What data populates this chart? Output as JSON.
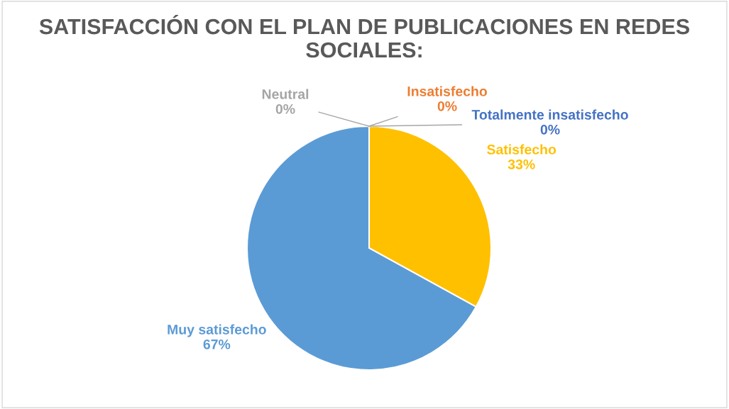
{
  "chart_data": {
    "type": "pie",
    "title": "SATISFACCIÓN CON EL PLAN DE PUBLICACIONES EN REDES SOCIALES:",
    "categories": [
      "Totalmente insatisfecho",
      "Insatisfecho",
      "Neutral",
      "Satisfecho",
      "Muy satisfecho"
    ],
    "values": [
      0,
      0,
      0,
      33,
      67
    ],
    "value_labels": [
      "0%",
      "0%",
      "0%",
      "33%",
      "67%"
    ],
    "colors": [
      "#4472c4",
      "#ed7d31",
      "#a5a5a5",
      "#ffc000",
      "#5b9bd5"
    ],
    "legend": false
  }
}
